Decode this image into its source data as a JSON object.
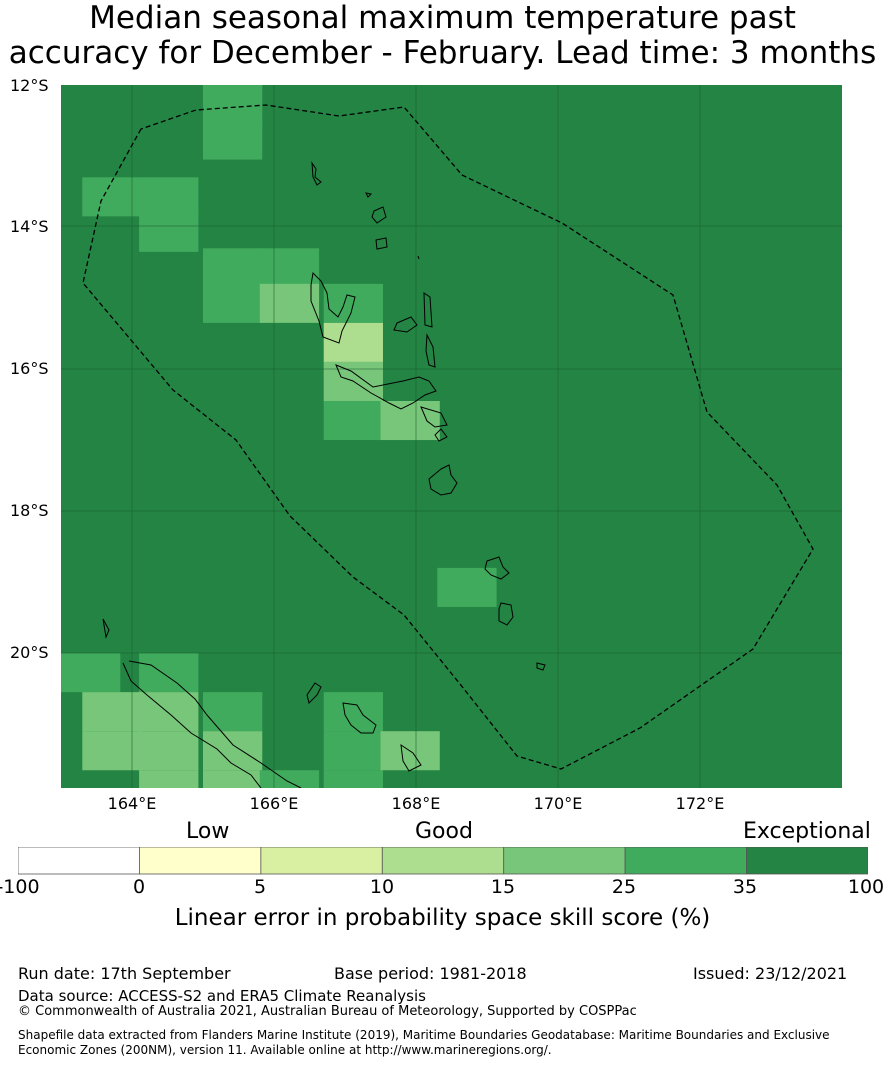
{
  "title": {
    "line1": "Median seasonal maximum temperature past",
    "line2": "accuracy for December - February. Lead time: 3 months"
  },
  "map": {
    "lat_labels": [
      "12°S",
      "14°S",
      "16°S",
      "18°S",
      "20°S"
    ],
    "lon_labels": [
      "164°E",
      "166°E",
      "168°E",
      "170°E",
      "172°E"
    ],
    "extent": {
      "lon_min": 163,
      "lon_max": 174,
      "lat_min": -21.9,
      "lat_max": -12
    },
    "background_category": "35-100",
    "cells": [
      {
        "lon": 165,
        "lat": -12.0,
        "category": "25-35"
      },
      {
        "lon": 165,
        "lat": -12.5,
        "category": "25-35"
      },
      {
        "lon": 163.3,
        "lat": -13.3,
        "category": "25-35"
      },
      {
        "lon": 164.1,
        "lat": -13.3,
        "category": "25-35"
      },
      {
        "lon": 164.1,
        "lat": -13.8,
        "category": "25-35"
      },
      {
        "lon": 165,
        "lat": -14.3,
        "category": "25-35"
      },
      {
        "lon": 165.8,
        "lat": -14.3,
        "category": "25-35"
      },
      {
        "lon": 165,
        "lat": -14.8,
        "category": "25-35"
      },
      {
        "lon": 165.8,
        "lat": -14.8,
        "category": "15-25"
      },
      {
        "lon": 166.7,
        "lat": -14.8,
        "category": "25-35"
      },
      {
        "lon": 166.7,
        "lat": -15.35,
        "category": "10-15"
      },
      {
        "lon": 166.7,
        "lat": -15.9,
        "category": "15-25"
      },
      {
        "lon": 166.7,
        "lat": -16.45,
        "category": "25-35"
      },
      {
        "lon": 167.5,
        "lat": -16.45,
        "category": "15-25"
      },
      {
        "lon": 168.3,
        "lat": -18.8,
        "category": "25-35"
      },
      {
        "lon": 163,
        "lat": -20.0,
        "category": "25-35"
      },
      {
        "lon": 164.1,
        "lat": -20.0,
        "category": "25-35"
      },
      {
        "lon": 163.3,
        "lat": -20.55,
        "category": "15-25"
      },
      {
        "lon": 164.1,
        "lat": -20.55,
        "category": "15-25"
      },
      {
        "lon": 165,
        "lat": -20.55,
        "category": "25-35"
      },
      {
        "lon": 163.3,
        "lat": -21.1,
        "category": "15-25"
      },
      {
        "lon": 164.1,
        "lat": -21.1,
        "category": "15-25"
      },
      {
        "lon": 165,
        "lat": -21.1,
        "category": "15-25"
      },
      {
        "lon": 164.1,
        "lat": -21.65,
        "category": "15-25"
      },
      {
        "lon": 165,
        "lat": -21.65,
        "category": "15-25"
      },
      {
        "lon": 165.8,
        "lat": -21.65,
        "category": "25-35"
      },
      {
        "lon": 166.7,
        "lat": -21.65,
        "category": "25-35"
      },
      {
        "lon": 166.7,
        "lat": -20.55,
        "category": "25-35"
      },
      {
        "lon": 166.7,
        "lat": -21.1,
        "category": "25-35"
      },
      {
        "lon": 167.5,
        "lat": -21.1,
        "category": "15-25"
      }
    ]
  },
  "legend": {
    "category_labels": [
      "Low",
      "Good",
      "Exceptional"
    ],
    "ticks": [
      "-100",
      "0",
      "5",
      "10",
      "15",
      "25",
      "35",
      "100"
    ],
    "colors": [
      "#ffffff",
      "#ffffcc",
      "#d9f0a3",
      "#addd8e",
      "#78c679",
      "#41ab5d",
      "#238443"
    ],
    "title": "Linear error in probability space skill score (%)"
  },
  "footer": {
    "run_date": "Run date: 17th September",
    "base_period": "Base period: 1981-2018",
    "issued": "Issued: 23/12/2021",
    "data_source": "Data source: ACCESS-S2 and ERA5 Climate Reanalysis",
    "copyright": "© Commonwealth of Australia 2021, Australian Bureau of Meteorology, Supported by COSPPac",
    "shapefile_line1": "Shapefile data extracted from Flanders Marine Institute (2019), Maritime Boundaries Geodatabase: Maritime Boundaries and Exclusive",
    "shapefile_line2": "Economic Zones (200NM), version 11. Available online at http://www.marineregions.org/."
  }
}
